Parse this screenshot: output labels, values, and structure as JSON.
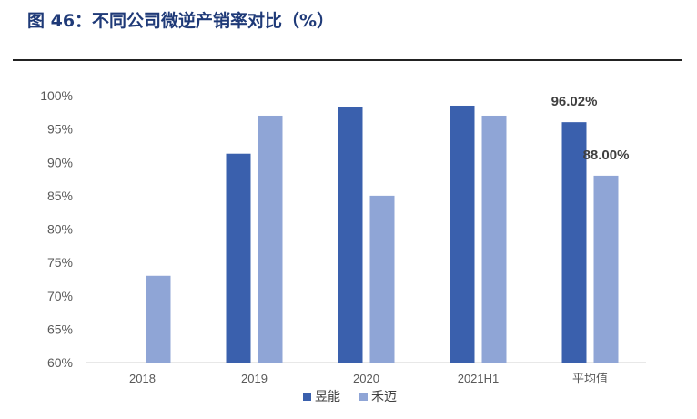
{
  "figure": {
    "title": "图 46：不同公司微逆产销率对比（%）"
  },
  "chart_data": {
    "type": "bar",
    "categories": [
      "2018",
      "2019",
      "2020",
      "2021H1",
      "平均值"
    ],
    "series": [
      {
        "name": "昱能",
        "color": "#3a60ad",
        "values": [
          null,
          91.3,
          98.3,
          98.5,
          96.02
        ]
      },
      {
        "name": "禾迈",
        "color": "#8fa5d6",
        "values": [
          73.0,
          97.0,
          85.0,
          97.0,
          88.0
        ]
      }
    ],
    "data_labels": [
      {
        "series": 0,
        "index": 4,
        "text": "96.02%"
      },
      {
        "series": 1,
        "index": 4,
        "text": "88.00%"
      }
    ],
    "yticks": [
      "60%",
      "65%",
      "70%",
      "75%",
      "80%",
      "85%",
      "90%",
      "95%",
      "100%"
    ],
    "ylim": [
      60,
      100
    ],
    "legend_position": "bottom-center",
    "grid": false
  }
}
